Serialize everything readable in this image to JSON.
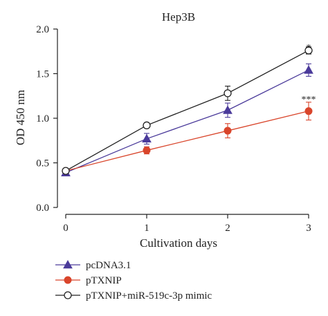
{
  "chart_data": {
    "type": "line",
    "title": "Hep3B",
    "xlabel": "Cultivation days",
    "ylabel": "OD 450 nm",
    "x": [
      0,
      1,
      2,
      3
    ],
    "xlim": [
      0,
      3
    ],
    "ylim": [
      0,
      2.0
    ],
    "xticks": [
      "0",
      "1",
      "2",
      "3"
    ],
    "yticks": [
      "0.0",
      "0.5",
      "1.0",
      "1.5",
      "2.0"
    ],
    "grid": false,
    "legend_position": "bottom-left",
    "series": [
      {
        "name": "pcDNA3.1",
        "values": [
          0.39,
          0.77,
          1.09,
          1.54
        ],
        "errors": [
          0.02,
          0.06,
          0.08,
          0.07
        ],
        "color": "#4a3a9a",
        "marker": "triangle"
      },
      {
        "name": "pTXNIP",
        "values": [
          0.41,
          0.64,
          0.86,
          1.08
        ],
        "errors": [
          0.02,
          0.04,
          0.08,
          0.1
        ],
        "color": "#d9452b",
        "marker": "filled-circle"
      },
      {
        "name": "pTXNIP+miR-519c-3p mimic",
        "values": [
          0.41,
          0.92,
          1.28,
          1.76
        ],
        "errors": [
          0.02,
          0.02,
          0.08,
          0.04
        ],
        "color": "#222222",
        "marker": "open-circle"
      }
    ],
    "annotations": [
      {
        "text": "*",
        "x": 3,
        "y": 1.82
      },
      {
        "text": "***",
        "x": 3,
        "y": 1.24
      }
    ]
  }
}
